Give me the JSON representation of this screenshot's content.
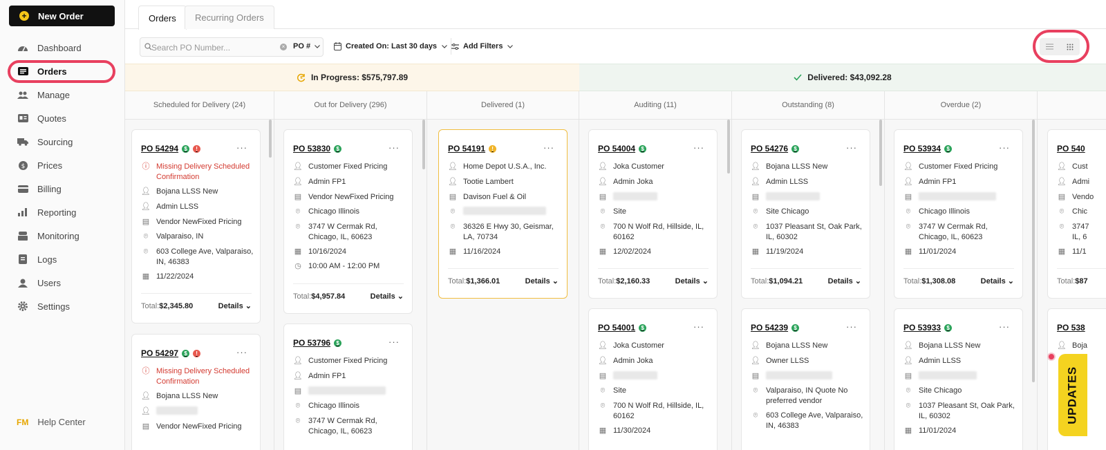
{
  "sidebar": {
    "new_order": "New Order",
    "items": [
      {
        "label": "Dashboard",
        "icon": "dashboard-icon"
      },
      {
        "label": "Orders",
        "icon": "orders-icon"
      },
      {
        "label": "Manage",
        "icon": "manage-icon"
      },
      {
        "label": "Quotes",
        "icon": "quotes-icon"
      },
      {
        "label": "Sourcing",
        "icon": "truck-icon"
      },
      {
        "label": "Prices",
        "icon": "dollar-icon"
      },
      {
        "label": "Billing",
        "icon": "card-icon"
      },
      {
        "label": "Reporting",
        "icon": "chart-icon"
      },
      {
        "label": "Monitoring",
        "icon": "monitor-icon"
      },
      {
        "label": "Logs",
        "icon": "logs-icon"
      },
      {
        "label": "Users",
        "icon": "user-icon"
      },
      {
        "label": "Settings",
        "icon": "gear-icon"
      }
    ],
    "active_item": "Orders",
    "help_center": "Help Center",
    "logo_text": "FM"
  },
  "tabs": [
    "Orders",
    "Recurring Orders"
  ],
  "toolbar": {
    "search_placeholder": "Search PO Number...",
    "po_select": "PO #",
    "created_on": "Created On: Last 30 days",
    "add_filters": "Add Filters"
  },
  "summary": {
    "in_progress": "In Progress: $575,797.89",
    "delivered": "Delivered: $43,092.28"
  },
  "columns": [
    "Scheduled for Delivery (24)",
    "Out for Delivery (296)",
    "Delivered (1)",
    "Auditing (11)",
    "Outstanding (8)",
    "Overdue (2)"
  ],
  "card_common": {
    "total_label": "Total:",
    "details_label": "Details"
  },
  "cards": {
    "c1": {
      "po": "PO 54294",
      "warn": "Missing Delivery Scheduled Confirmation",
      "customer": "Bojana LLSS New",
      "admin": "Admin LLSS",
      "vendor": "Vendor NewFixed Pricing",
      "site": "Valparaiso, IN",
      "address": "603 College Ave, Valparaiso, IN, 46383",
      "date": "11/22/2024",
      "total": "$2,345.80"
    },
    "c2": {
      "po": "PO 54297",
      "warn": "Missing Delivery Scheduled Confirmation",
      "customer": "Bojana LLSS New",
      "vendor": "Vendor NewFixed Pricing"
    },
    "c3": {
      "po": "PO 53830",
      "customer": "Customer Fixed Pricing",
      "admin": "Admin FP1",
      "vendor": "Vendor NewFixed Pricing",
      "site": "Chicago Illinois",
      "address": "3747 W Cermak Rd, Chicago, IL, 60623",
      "date": "10/16/2024",
      "time": "10:00 AM - 12:00 PM",
      "total": "$4,957.84"
    },
    "c4": {
      "po": "PO 53796",
      "customer": "Customer Fixed Pricing",
      "admin": "Admin FP1",
      "site": "Chicago Illinois",
      "address": "3747 W Cermak Rd, Chicago, IL, 60623"
    },
    "c5": {
      "po": "PO 54191",
      "customer": "Home Depot U.S.A., Inc.",
      "admin": "Tootie Lambert",
      "vendor": "Davison Fuel & Oil",
      "address": "36326 E Hwy 30, Geismar, LA, 70734",
      "date": "11/16/2024",
      "total": "$1,366.01"
    },
    "c6": {
      "po": "PO 54004",
      "customer": "Joka Customer",
      "admin": "Admin Joka",
      "site": "Site",
      "address": "700 N Wolf Rd, Hillside, IL, 60162",
      "date": "12/02/2024",
      "total": "$2,160.33"
    },
    "c7": {
      "po": "PO 54001",
      "customer": "Joka Customer",
      "admin": "Admin Joka",
      "site": "Site",
      "address": "700 N Wolf Rd, Hillside, IL, 60162",
      "date": "11/30/2024"
    },
    "c8": {
      "po": "PO 54276",
      "customer": "Bojana LLSS New",
      "admin": "Admin LLSS",
      "site": "Site Chicago",
      "address": "1037 Pleasant St, Oak Park, IL, 60302",
      "date": "11/19/2024",
      "total": "$1,094.21"
    },
    "c9": {
      "po": "PO 54239",
      "customer": "Bojana LLSS New",
      "admin": "Owner LLSS",
      "site": "Valparaiso, IN Quote No preferred vendor",
      "address": "603 College Ave, Valparaiso, IN, 46383"
    },
    "c10": {
      "po": "PO 53934",
      "customer": "Customer Fixed Pricing",
      "admin": "Admin FP1",
      "site": "Chicago Illinois",
      "address": "3747 W Cermak Rd, Chicago, IL, 60623",
      "date": "11/01/2024",
      "total": "$1,308.08"
    },
    "c11": {
      "po": "PO 53933",
      "customer": "Bojana LLSS New",
      "admin": "Admin LLSS",
      "site": "Site Chicago",
      "address": "1037 Pleasant St, Oak Park, IL, 60302",
      "date": "11/01/2024"
    },
    "c12": {
      "po": "PO 540",
      "customer": "Cust",
      "admin": "Admi",
      "vendor": "Vendo",
      "site": "Chic",
      "address": "3747 IL, 6",
      "date": "11/1",
      "total": "$87"
    },
    "c13": {
      "po": "PO 538",
      "customer": "Boja"
    }
  },
  "updates_label": "UPDATES",
  "colors": {
    "accent_red": "#e8405f",
    "warning_red": "#d33a30",
    "status_green": "#2ba35a",
    "updates_yellow": "#f4d320"
  }
}
